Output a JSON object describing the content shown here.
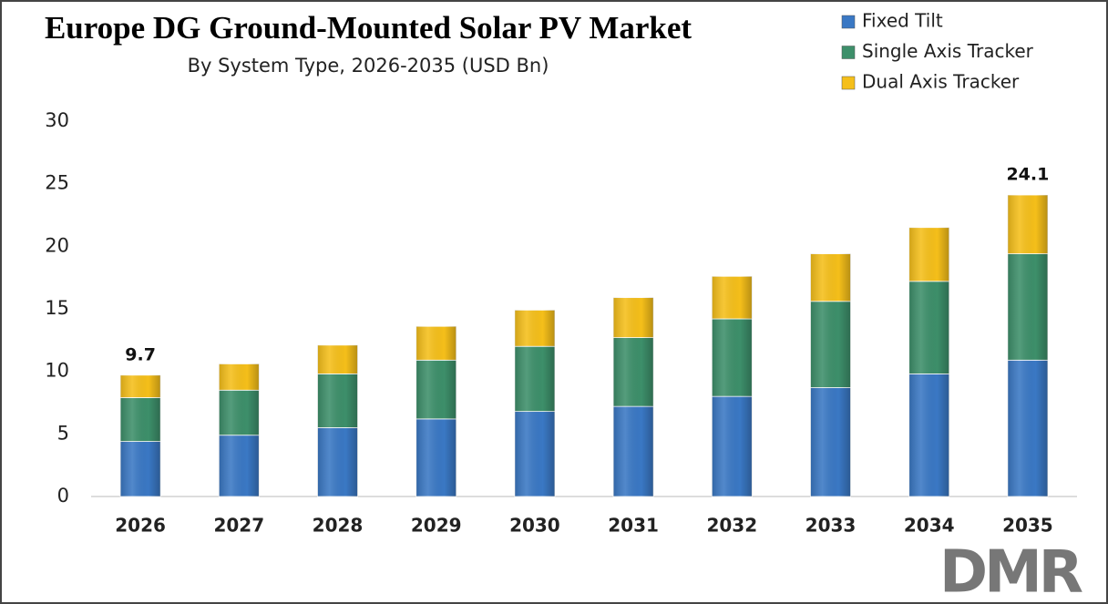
{
  "chart_data": {
    "type": "stacked_bar",
    "title": "Europe DG Ground-Mounted Solar PV Market",
    "subtitle": "By System Type, 2026-2035 (USD Bn)",
    "categories": [
      "2026",
      "2027",
      "2028",
      "2029",
      "2030",
      "2031",
      "2032",
      "2033",
      "2034",
      "2035"
    ],
    "series": [
      {
        "name": "Fixed Tilt",
        "color": "#3a78c4",
        "values": [
          4.4,
          4.9,
          5.5,
          6.2,
          6.8,
          7.2,
          8.0,
          8.7,
          9.8,
          10.9
        ]
      },
      {
        "name": "Single Axis Tracker",
        "color": "#3d8f6a",
        "values": [
          3.5,
          3.6,
          4.3,
          4.7,
          5.2,
          5.5,
          6.2,
          6.9,
          7.4,
          8.5
        ]
      },
      {
        "name": "Dual Axis Tracker",
        "color": "#f5bf1a",
        "values": [
          1.8,
          2.1,
          2.3,
          2.7,
          2.9,
          3.2,
          3.4,
          3.8,
          4.3,
          4.7
        ]
      }
    ],
    "total_labels": [
      9.7,
      null,
      null,
      null,
      null,
      null,
      null,
      null,
      null,
      24.1
    ],
    "ylim": [
      0,
      30
    ],
    "yticks": [
      0,
      5,
      10,
      15,
      20,
      25,
      30
    ],
    "grid": false,
    "legend": "top-right",
    "logo": "DMR"
  }
}
